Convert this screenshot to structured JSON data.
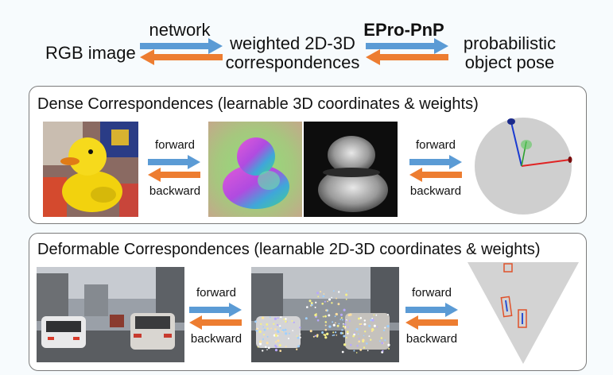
{
  "header": {
    "rgb_image": "RGB image",
    "network": "network",
    "weighted_line1": "weighted 2D-3D",
    "weighted_line2": "correspondences",
    "epro_pnp": "EPro-PnP",
    "probabilistic_line1": "probabilistic",
    "probabilistic_line2": "object pose"
  },
  "dense_panel": {
    "title": "Dense Correspondences (learnable 3D coordinates & weights)",
    "forward_1": "forward",
    "backward_1": "backward",
    "forward_2": "forward",
    "backward_2": "backward"
  },
  "deformable_panel": {
    "title": "Deformable Correspondences (learnable 2D-3D coordinates & weights)",
    "forward_1": "forward",
    "backward_1": "backward",
    "forward_2": "forward",
    "backward_2": "backward"
  },
  "colors": {
    "forward_arrow": "#5b9bd5",
    "backward_arrow": "#ed7d31"
  }
}
